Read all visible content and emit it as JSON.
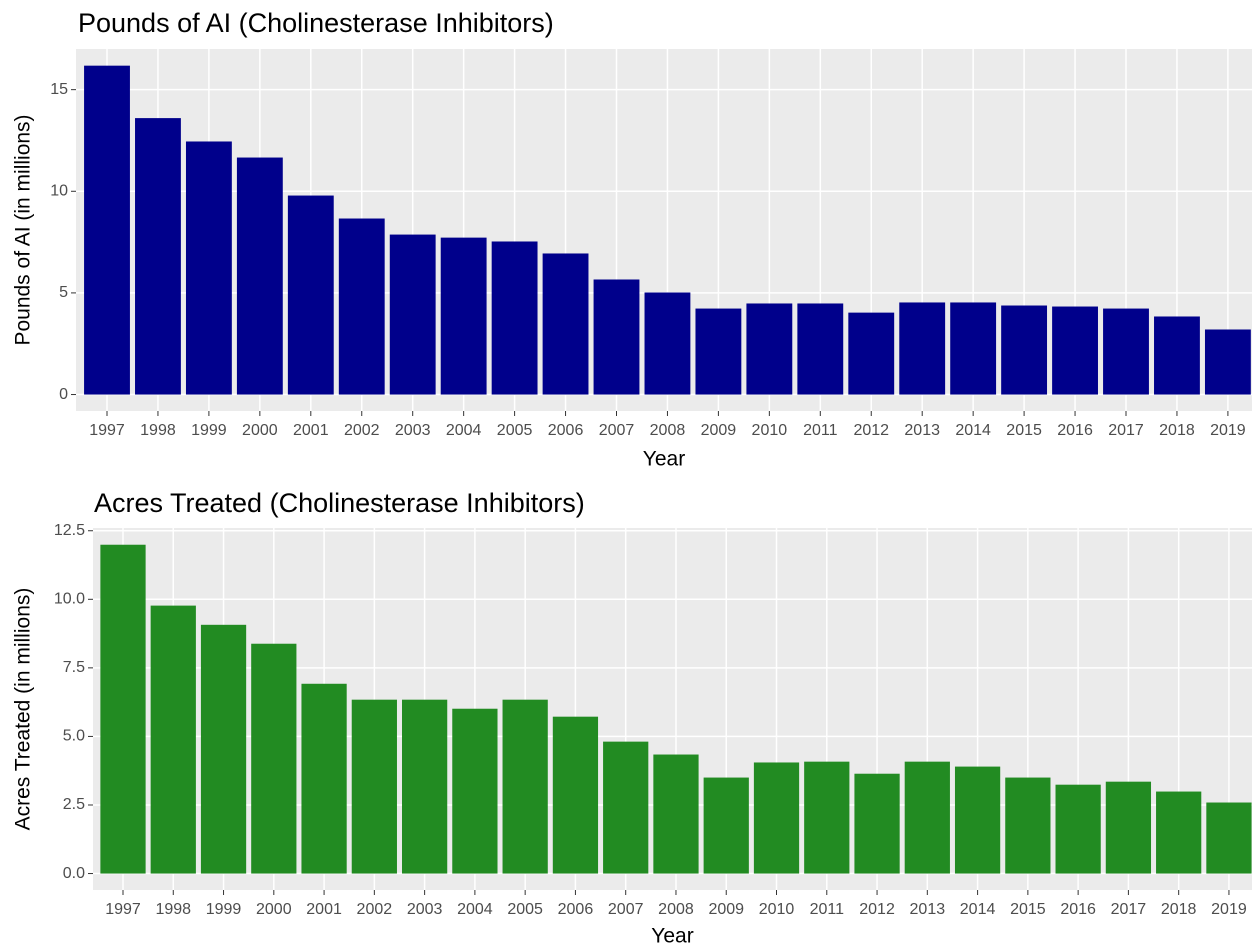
{
  "chart_data": [
    {
      "type": "bar",
      "title": "Pounds of AI  (Cholinesterase Inhibitors)",
      "x_label": "Year",
      "y_label": "Pounds of AI (in millions)",
      "categories": [
        "1997",
        "1998",
        "1999",
        "2000",
        "2001",
        "2002",
        "2003",
        "2004",
        "2005",
        "2006",
        "2007",
        "2008",
        "2009",
        "2010",
        "2011",
        "2012",
        "2013",
        "2014",
        "2015",
        "2016",
        "2017",
        "2018",
        "2019"
      ],
      "values": [
        16.18,
        13.6,
        12.45,
        11.66,
        9.79,
        8.66,
        7.87,
        7.72,
        7.53,
        6.94,
        5.66,
        5.02,
        4.23,
        4.48,
        4.48,
        4.03,
        4.53,
        4.53,
        4.38,
        4.33,
        4.23,
        3.84,
        3.2
      ],
      "color": "#00008b",
      "ylim": [
        -0.81,
        17.0
      ],
      "yticks": [
        0,
        5,
        10,
        15
      ],
      "grid": true
    },
    {
      "type": "bar",
      "title": "Acres Treated  (Cholinesterase Inhibitors)",
      "x_label": "Year",
      "y_label": "Acres Treated (in millions)",
      "categories": [
        "1997",
        "1998",
        "1999",
        "2000",
        "2001",
        "2002",
        "2003",
        "2004",
        "2005",
        "2006",
        "2007",
        "2008",
        "2009",
        "2010",
        "2011",
        "2012",
        "2013",
        "2014",
        "2015",
        "2016",
        "2017",
        "2018",
        "2019"
      ],
      "values": [
        11.99,
        9.77,
        9.07,
        8.38,
        6.92,
        6.34,
        6.34,
        6.01,
        6.34,
        5.72,
        4.81,
        4.34,
        3.5,
        4.05,
        4.08,
        3.64,
        4.08,
        3.9,
        3.5,
        3.24,
        3.35,
        2.99,
        2.59
      ],
      "color": "#228b22",
      "ylim": [
        -0.6,
        12.6
      ],
      "yticks": [
        {
          "value": 0,
          "label": "0.0"
        },
        {
          "value": 2.5,
          "label": "2.5"
        },
        {
          "value": 5,
          "label": "5.0"
        },
        {
          "value": 7.5,
          "label": "7.5"
        },
        {
          "value": 10,
          "label": "10.0"
        },
        {
          "value": 12.5,
          "label": "12.5"
        }
      ],
      "grid": true
    }
  ]
}
